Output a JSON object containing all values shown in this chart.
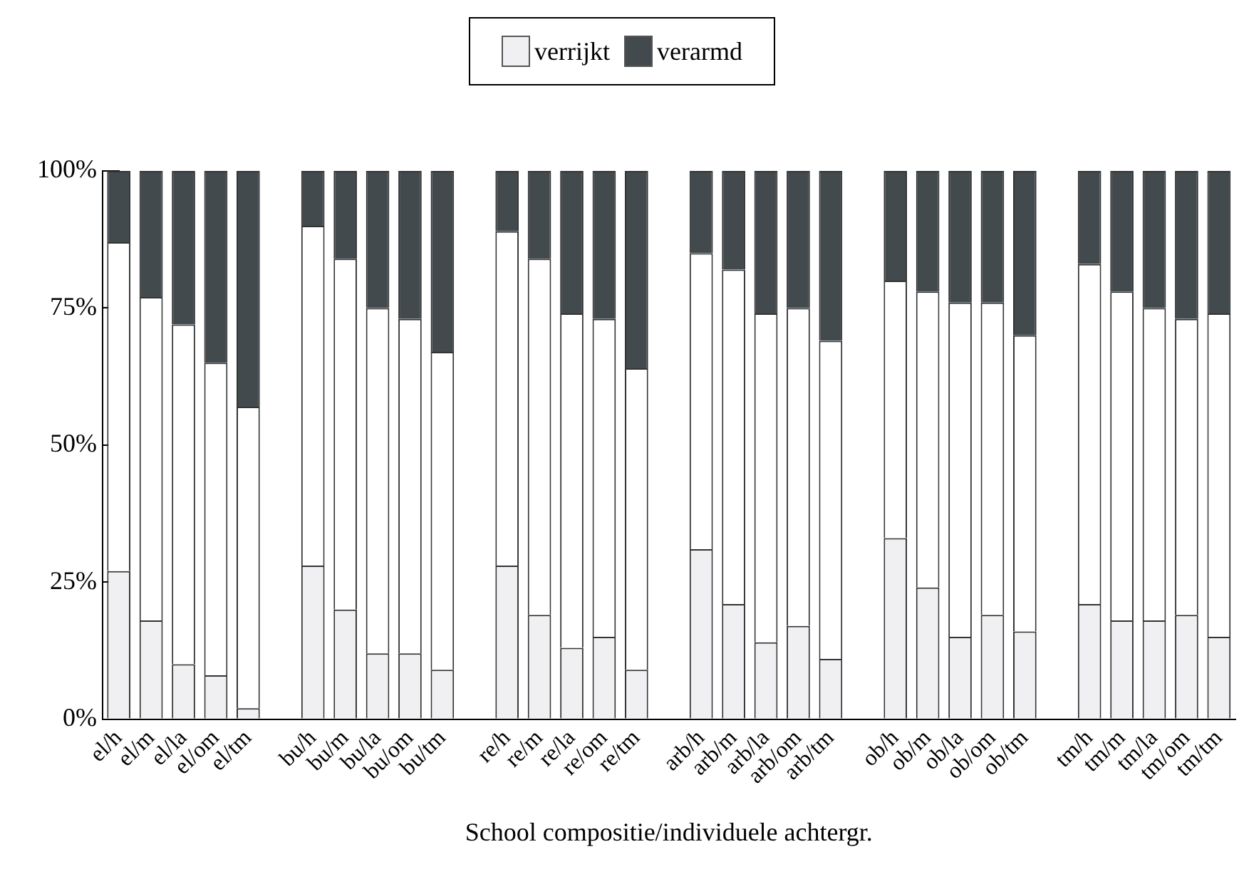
{
  "chart_data": {
    "type": "bar",
    "stacked": true,
    "xlabel": "School compositie/individuele achtergr.",
    "categories": [
      "el/h",
      "el/m",
      "el/la",
      "el/om",
      "el/tm",
      null,
      "bu/h",
      "bu/m",
      "bu/la",
      "bu/om",
      "bu/tm",
      null,
      "re/h",
      "re/m",
      "re/la",
      "re/om",
      "re/tm",
      null,
      "arb/h",
      "arb/m",
      "arb/la",
      "arb/om",
      "arb/tm",
      null,
      "ob/h",
      "ob/m",
      "ob/la",
      "ob/om",
      "ob/tm",
      null,
      "tm/h",
      "tm/m",
      "tm/la",
      "tm/om",
      "tm/tm"
    ],
    "series": [
      {
        "name": "verrijkt",
        "color": "#f0f0f2",
        "values": [
          27,
          18,
          10,
          8,
          2,
          null,
          28,
          20,
          12,
          12,
          9,
          null,
          28,
          19,
          13,
          15,
          9,
          null,
          31,
          21,
          14,
          17,
          11,
          null,
          33,
          24,
          15,
          19,
          16,
          null,
          21,
          18,
          18,
          19,
          15
        ]
      },
      {
        "color": "#ffffff",
        "values": [
          60,
          59,
          62,
          57,
          55,
          null,
          62,
          64,
          63,
          61,
          58,
          null,
          61,
          65,
          61,
          58,
          55,
          null,
          54,
          61,
          60,
          58,
          58,
          null,
          47,
          54,
          61,
          57,
          54,
          null,
          62,
          60,
          57,
          54,
          59
        ]
      },
      {
        "name": "verarmd",
        "color": "#434a4d",
        "values": [
          13,
          23,
          28,
          35,
          43,
          null,
          10,
          16,
          25,
          27,
          33,
          null,
          11,
          16,
          26,
          27,
          36,
          null,
          15,
          18,
          26,
          25,
          31,
          null,
          20,
          22,
          24,
          24,
          30,
          null,
          17,
          22,
          25,
          27,
          26
        ]
      }
    ],
    "ylim": [
      0,
      100
    ],
    "yticks": [
      {
        "value": 0,
        "label": "0%"
      },
      {
        "value": 25,
        "label": "25%"
      },
      {
        "value": 50,
        "label": "50%"
      },
      {
        "value": 75,
        "label": "75%"
      },
      {
        "value": 100,
        "label": "100%"
      }
    ],
    "grid": false,
    "legend": "top"
  }
}
